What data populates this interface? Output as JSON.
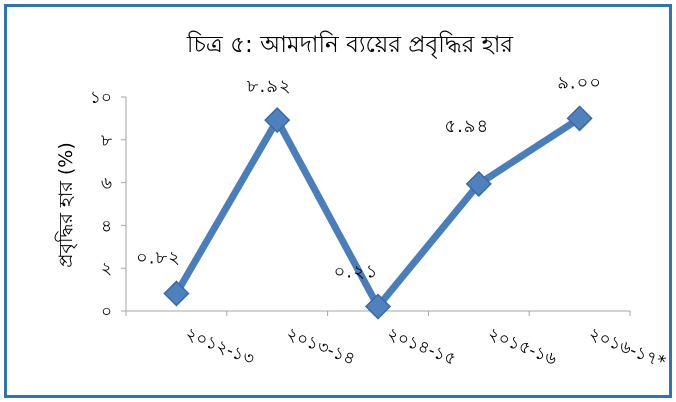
{
  "chart_data": {
    "type": "line",
    "title": "চিত্র ৫: আমদানি ব্যয়ের প্রবৃদ্ধির হার",
    "xlabel": "",
    "ylabel": "প্রবৃদ্ধির হার (%)",
    "categories": [
      "২০১২-১৩",
      "২০১৩-১৪",
      "২০১৪-১৫",
      "২০১৫-১৬",
      "২০১৬-১৭*"
    ],
    "values": [
      0.82,
      8.92,
      0.21,
      5.94,
      9.0
    ],
    "data_labels": [
      "০.৮২",
      "৮.৯২",
      "০.২১",
      "৫.৯৪",
      "৯.০০"
    ],
    "ylim": [
      0,
      10
    ],
    "yticks": [
      {
        "value": 0,
        "label": "০"
      },
      {
        "value": 2,
        "label": "২"
      },
      {
        "value": 4,
        "label": "৪"
      },
      {
        "value": 6,
        "label": "৬"
      },
      {
        "value": 8,
        "label": "৮"
      },
      {
        "value": 10,
        "label": "১০"
      }
    ],
    "grid": false,
    "legend": "none",
    "colors": {
      "series": "#4a7ebb",
      "marker": "#4f81bd",
      "marker_edge": "#3a6aa6",
      "border": "#2e74b5"
    }
  }
}
